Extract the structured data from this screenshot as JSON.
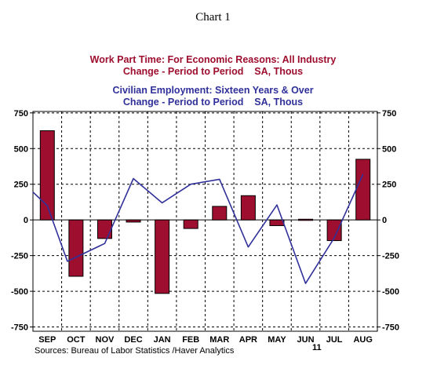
{
  "chart_number": "Chart 1",
  "chart_data": {
    "type": "bar+line",
    "categories": [
      "SEP",
      "OCT",
      "NOV",
      "DEC",
      "JAN",
      "FEB",
      "MAR",
      "APR",
      "MAY",
      "JUN",
      "JUL",
      "AUG"
    ],
    "year_label": "11",
    "year_label_category": "JUN",
    "series": [
      {
        "name": "Work Part Time: For Economic Reasons: All Industry",
        "subtitle": "Change - Period to Period    SA, Thous",
        "type": "bar",
        "color": "#9e0e2e",
        "values": [
          625,
          -395,
          -130,
          -15,
          -515,
          -60,
          95,
          170,
          -40,
          5,
          -145,
          425
        ]
      },
      {
        "name": "Civilian Employment: Sixteen Years & Over",
        "subtitle": "Change - Period to Period    SA, Thous",
        "type": "line",
        "color": "#30309a",
        "x": [
          -0.5,
          0,
          0.7,
          2,
          3,
          4,
          5,
          6,
          7,
          8,
          9,
          10,
          11
        ],
        "values": [
          195,
          100,
          -290,
          -165,
          290,
          120,
          250,
          285,
          -190,
          105,
          -445,
          -125,
          320
        ]
      }
    ],
    "ylim": [
      -780,
      760
    ],
    "yticks": [
      750,
      500,
      250,
      0,
      -250,
      -500,
      -750
    ],
    "ytick_labels": [
      "750",
      "500",
      "250",
      "0",
      "-250",
      "-500",
      "-750"
    ],
    "grid": true,
    "source": "Sources:  Bureau of Labor Statistics /Haver Analytics"
  }
}
